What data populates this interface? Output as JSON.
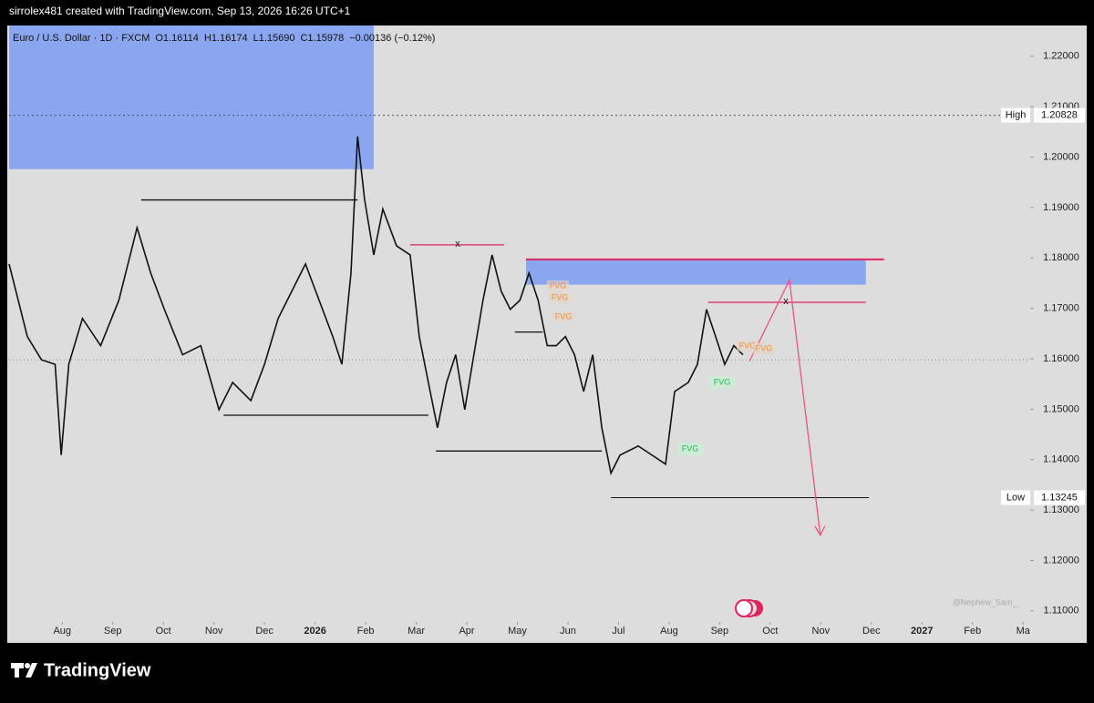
{
  "header": {
    "text": "sirrolex481 created with TradingView.com, Sep 13, 2026 16:26 UTC+1"
  },
  "footer": {
    "brand": "TradingView"
  },
  "chart_data": {
    "type": "line",
    "legend": {
      "symbol": "Euro / U.S. Dollar · 1D · FXCM",
      "open": "O1.16114",
      "high": "H1.16174",
      "low": "L1.15690",
      "close": "C1.15978",
      "change": "−0.00136 (−0.12%)"
    },
    "watermark": "@Nephew_Sam_",
    "xlim": [
      -1.05,
      19.14
    ],
    "xticks": [
      {
        "value": 0,
        "label": "Aug"
      },
      {
        "value": 1,
        "label": "Sep"
      },
      {
        "value": 2,
        "label": "Oct"
      },
      {
        "value": 3,
        "label": "Nov"
      },
      {
        "value": 4,
        "label": "Dec"
      },
      {
        "value": 5,
        "label": "2026"
      },
      {
        "value": 6,
        "label": "Feb"
      },
      {
        "value": 7,
        "label": "Mar"
      },
      {
        "value": 8,
        "label": "Apr"
      },
      {
        "value": 9,
        "label": "May"
      },
      {
        "value": 10,
        "label": "Jun"
      },
      {
        "value": 11,
        "label": "Jul"
      },
      {
        "value": 12,
        "label": "Aug"
      },
      {
        "value": 13,
        "label": "Sep"
      },
      {
        "value": 14,
        "label": "Oct"
      },
      {
        "value": 15,
        "label": "Nov"
      },
      {
        "value": 16,
        "label": "Dec"
      },
      {
        "value": 17,
        "label": "2027"
      },
      {
        "value": 18,
        "label": "Feb"
      },
      {
        "value": 19,
        "label": "Ma"
      }
    ],
    "ylim": [
      1.1078,
      1.2261
    ],
    "yticks": [
      {
        "value": 1.11,
        "label": "1.11000"
      },
      {
        "value": 1.12,
        "label": "1.12000"
      },
      {
        "value": 1.13,
        "label": "1.13000"
      },
      {
        "value": 1.14,
        "label": "1.14000"
      },
      {
        "value": 1.15,
        "label": "1.15000"
      },
      {
        "value": 1.16,
        "label": "1.16000"
      },
      {
        "value": 1.17,
        "label": "1.17000"
      },
      {
        "value": 1.18,
        "label": "1.18000"
      },
      {
        "value": 1.19,
        "label": "1.19000"
      },
      {
        "value": 1.2,
        "label": "1.20000"
      },
      {
        "value": 1.21,
        "label": "1.21000"
      },
      {
        "value": 1.22,
        "label": "1.22000"
      }
    ],
    "series": [
      {
        "name": "EURUSD",
        "color": "#111111",
        "x": [
          -1.05,
          -0.69,
          -0.41,
          -0.14,
          -0.02,
          0.13,
          0.4,
          0.76,
          1.12,
          1.48,
          1.75,
          2.02,
          2.38,
          2.74,
          3.1,
          3.37,
          3.73,
          4.0,
          4.27,
          4.54,
          4.81,
          5.08,
          5.35,
          5.53,
          5.71,
          5.84,
          5.98,
          6.16,
          6.34,
          6.61,
          6.88,
          7.06,
          7.24,
          7.42,
          7.6,
          7.78,
          7.96,
          8.14,
          8.32,
          8.5,
          8.68,
          8.86,
          9.05,
          9.23,
          9.41,
          9.59,
          9.77,
          9.95,
          10.13,
          10.31,
          10.49,
          10.67,
          10.85,
          11.03,
          11.39,
          11.66,
          11.93,
          12.11,
          12.38,
          12.56,
          12.74,
          12.92,
          13.1,
          13.28,
          13.46
        ],
        "values": [
          1.1788,
          1.1644,
          1.1598,
          1.1589,
          1.1409,
          1.1589,
          1.168,
          1.1626,
          1.1716,
          1.186,
          1.177,
          1.1698,
          1.1608,
          1.1626,
          1.1499,
          1.1553,
          1.1517,
          1.1589,
          1.168,
          1.1734,
          1.1788,
          1.1716,
          1.1644,
          1.1589,
          1.177,
          1.2041,
          1.1915,
          1.1806,
          1.1897,
          1.1824,
          1.1806,
          1.1644,
          1.1553,
          1.1463,
          1.1553,
          1.1608,
          1.1499,
          1.1608,
          1.1716,
          1.1806,
          1.1734,
          1.1698,
          1.1716,
          1.177,
          1.1716,
          1.1626,
          1.1626,
          1.1644,
          1.1608,
          1.1535,
          1.1608,
          1.1463,
          1.1373,
          1.1409,
          1.1427,
          1.1409,
          1.1391,
          1.1535,
          1.1553,
          1.1589,
          1.1698,
          1.1644,
          1.1589,
          1.1626,
          1.1608
        ]
      }
    ],
    "last_price": 1.15978,
    "level_labels": [
      {
        "label": "High",
        "value": 1.20828,
        "color": "#555555"
      },
      {
        "label": "Low",
        "value": 1.13245,
        "color": "#111111"
      }
    ],
    "zones": [
      {
        "x": [
          -1.05,
          6.16
        ],
        "y": [
          1.1976,
          1.2261
        ],
        "color": "#8ba6f0"
      },
      {
        "x": [
          9.17,
          15.89
        ],
        "y": [
          1.1747,
          1.1797
        ],
        "color": "#8ba6f0"
      }
    ],
    "drawings": [
      {
        "x": [
          1.56,
          5.84
        ],
        "y": [
          1.1915,
          1.1915
        ],
        "color": "#111111"
      },
      {
        "x": [
          3.19,
          7.24
        ],
        "y": [
          1.1488,
          1.1488
        ],
        "color": "#111111"
      },
      {
        "x": [
          7.39,
          10.67
        ],
        "y": [
          1.1417,
          1.1417
        ],
        "color": "#111111"
      },
      {
        "x": [
          8.95,
          9.5
        ],
        "y": [
          1.1653,
          1.1653
        ],
        "color": "#111111"
      },
      {
        "x": [
          6.88,
          8.74
        ],
        "y": [
          1.1826,
          1.1826
        ],
        "color": "#e0245e"
      },
      {
        "x": [
          9.17,
          16.25
        ],
        "y": [
          1.1797,
          1.1797
        ],
        "color": "#e0245e"
      },
      {
        "x": [
          12.77,
          15.89
        ],
        "y": [
          1.1712,
          1.1712
        ],
        "color": "#e0245e"
      },
      {
        "x": [
          13.59,
          14.38,
          14.99
        ],
        "y": [
          1.1595,
          1.1756,
          1.125
        ],
        "color": "#e8557e"
      }
    ],
    "fvg_labels": [
      "FVG",
      "FVG",
      "FVG",
      "FVG",
      "FVG",
      "FVG",
      "FVG"
    ],
    "x_markers": [
      "x",
      "x"
    ]
  }
}
